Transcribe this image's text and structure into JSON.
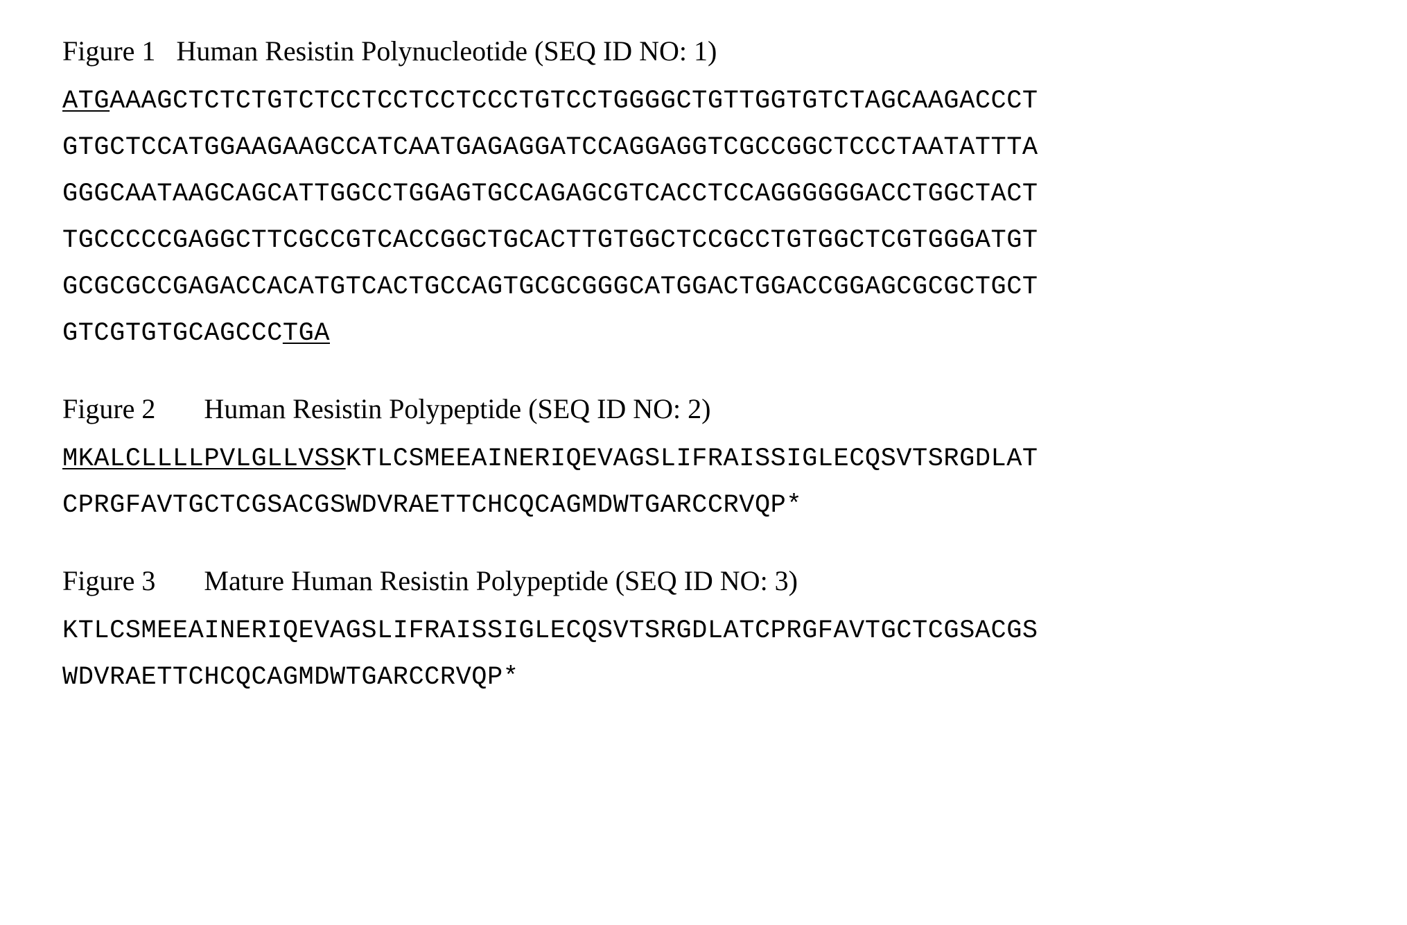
{
  "figures": [
    {
      "heading": "Figure 1   Human Resistin Polynucleotide (SEQ ID NO: 1)",
      "heading_font_family": "Times New Roman",
      "heading_font_size_pt": 30,
      "sequence_font_family": "Courier New",
      "sequence_font_size_pt": 28,
      "lines": [
        {
          "prefix_underlined": "ATG",
          "middle": "AAAGCTCTCTGTCTCCTCCTCCTCCCTGTCCTGGGGCTGTTGGTGTCTAGCAAGACCCT",
          "suffix_underlined": ""
        },
        {
          "prefix_underlined": "",
          "middle": "GTGCTCCATGGAAGAAGCCATCAATGAGAGGATCCAGGAGGTCGCCGGCTCCCTAATATTTA",
          "suffix_underlined": ""
        },
        {
          "prefix_underlined": "",
          "middle": "GGGCAATAAGCAGCATTGGCCTGGAGTGCCAGAGCGTCACCTCCAGGGGGGACCTGGCTACT",
          "suffix_underlined": ""
        },
        {
          "prefix_underlined": "",
          "middle": "TGCCCCCGAGGCTTCGCCGTCACCGGCTGCACTTGTGGCTCCGCCTGTGGCTCGTGGGATGT",
          "suffix_underlined": ""
        },
        {
          "prefix_underlined": "",
          "middle": "GCGCGCCGAGACCACATGTCACTGCCAGTGCGCGGGCATGGACTGGACCGGAGCGCGCTGCT",
          "suffix_underlined": ""
        },
        {
          "prefix_underlined": "",
          "middle": "GTCGTGTGCAGCCC",
          "suffix_underlined": "TGA"
        }
      ]
    },
    {
      "heading": "Figure 2       Human Resistin Polypeptide (SEQ ID NO: 2)",
      "heading_font_family": "Times New Roman",
      "heading_font_size_pt": 30,
      "sequence_font_family": "Courier New",
      "sequence_font_size_pt": 28,
      "lines": [
        {
          "prefix_underlined": "MKALCLLLLPVLGLLVSS",
          "middle": "KTLCSMEEAINERIQEVAGSLIFRAISSIGLECQSVTSRGDLAT",
          "suffix_underlined": ""
        },
        {
          "prefix_underlined": "",
          "middle": "CPRGFAVTGCTCGSACGSWDVRAETTCHCQCAGMDWTGARCCRVQP*",
          "suffix_underlined": ""
        }
      ]
    },
    {
      "heading": "Figure 3       Mature Human Resistin Polypeptide (SEQ ID NO: 3)",
      "heading_font_family": "Times New Roman",
      "heading_font_size_pt": 30,
      "sequence_font_family": "Courier New",
      "sequence_font_size_pt": 28,
      "lines": [
        {
          "prefix_underlined": "",
          "middle": "KTLCSMEEAINERIQEVAGSLIFRAISSIGLECQSVTSRGDLATCPRGFAVTGCTCGSACGS",
          "suffix_underlined": ""
        },
        {
          "prefix_underlined": "",
          "middle": "WDVRAETTCHCQCAGMDWTGARCCRVQP*",
          "suffix_underlined": ""
        }
      ]
    }
  ],
  "colors": {
    "background": "#ffffff",
    "text": "#000000"
  }
}
